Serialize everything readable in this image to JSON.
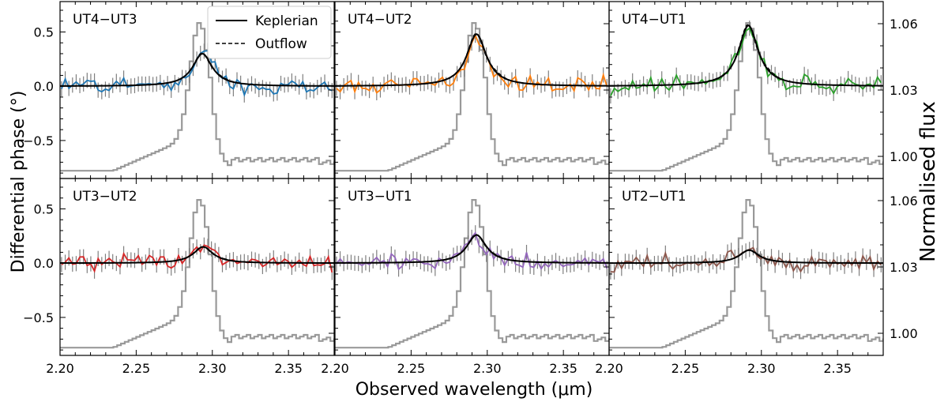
{
  "chart_data": {
    "type": "line",
    "xlabel": "Observed wavelength (μm)",
    "ylabel_left": "Differential phase (°)",
    "ylabel_right": "Normalised flux",
    "xlim": [
      2.2,
      2.38
    ],
    "xticks": [
      "2.20",
      "2.25",
      "2.30",
      "2.35"
    ],
    "ylim_phase": [
      -0.85,
      0.78
    ],
    "yticks_phase": [
      "0.5",
      "0.0",
      "−0.5"
    ],
    "ylim_flux": [
      0.99,
      1.07
    ],
    "yticks_flux": [
      "1.06",
      "1.03",
      "1.00"
    ],
    "legend": {
      "position": "top-right of first panel",
      "entries": [
        "Keplerian",
        "Outflow"
      ]
    },
    "flux_color": "#999999",
    "panels": [
      {
        "name": "UT4−UT3",
        "color": "#1f77b4",
        "center": 2.2935,
        "peak": 0.3
      },
      {
        "name": "UT4−UT2",
        "color": "#ff7f0e",
        "center": 2.293,
        "peak": 0.48
      },
      {
        "name": "UT4−UT1",
        "color": "#2ca02c",
        "center": 2.2915,
        "peak": 0.56
      },
      {
        "name": "UT3−UT2",
        "color": "#d62728",
        "center": 2.294,
        "peak": 0.15
      },
      {
        "name": "UT3−UT1",
        "color": "#9467bd",
        "center": 2.293,
        "peak": 0.26
      },
      {
        "name": "UT2−UT1",
        "color": "#8c564b",
        "center": 2.292,
        "peak": 0.12
      }
    ]
  }
}
